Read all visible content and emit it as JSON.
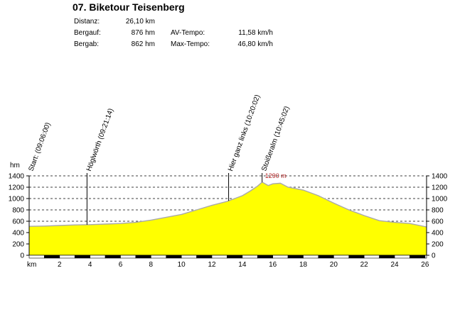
{
  "title": "07. Biketour Teisenberg",
  "stats": {
    "distance_label": "Distanz:",
    "distance_value": "26,10 km",
    "ascent_label": "Bergauf:",
    "ascent_value": "876 hm",
    "descent_label": "Bergab:",
    "descent_value": "862 hm",
    "avg_speed_label": "AV-Tempo:",
    "avg_speed_value": "11,58 km/h",
    "max_speed_label": "Max-Tempo:",
    "max_speed_value": "46,80 km/h"
  },
  "chart_data": {
    "type": "area",
    "ylabel": "hm",
    "xlabel": "km",
    "xlim": [
      0,
      26.1
    ],
    "ylim": [
      0,
      1400
    ],
    "y_ticks": [
      0,
      200,
      400,
      600,
      800,
      1000,
      1200,
      1400
    ],
    "x_ticks": [
      2,
      4,
      6,
      8,
      10,
      12,
      14,
      16,
      18,
      20,
      22,
      24,
      26
    ],
    "grid": true,
    "colors": {
      "fill": "#ffff00",
      "line": "#a9a9a9",
      "peak_label": "#b22222",
      "bar_dark": "#000000",
      "bar_light": "#ffffff"
    },
    "series": [
      {
        "x": [
          0,
          1,
          2,
          3,
          4,
          5,
          6,
          7,
          8,
          9,
          10,
          11,
          12,
          13,
          14,
          14.5,
          15,
          15.3,
          15.7,
          16,
          16.5,
          17,
          18,
          19,
          20,
          21,
          22,
          23,
          24,
          25,
          26.1
        ],
        "y": [
          510,
          515,
          525,
          535,
          540,
          550,
          560,
          580,
          620,
          670,
          720,
          800,
          880,
          950,
          1050,
          1130,
          1220,
          1290,
          1230,
          1260,
          1270,
          1200,
          1150,
          1050,
          920,
          800,
          700,
          610,
          580,
          560,
          500
        ]
      }
    ],
    "waypoints": [
      {
        "label": "Start: (09:06:00)",
        "x": 0
      },
      {
        "label": "Höglwörth (09:21:14)",
        "x": 3.8
      },
      {
        "label": "Hier ganz links (10:20:02)",
        "x": 13.1
      },
      {
        "label": "Stoißeralm (10:45:02)",
        "x": 15.3
      }
    ],
    "annotations": [
      {
        "text": "1290 m",
        "x": 15.3,
        "y": 1290
      }
    ]
  }
}
